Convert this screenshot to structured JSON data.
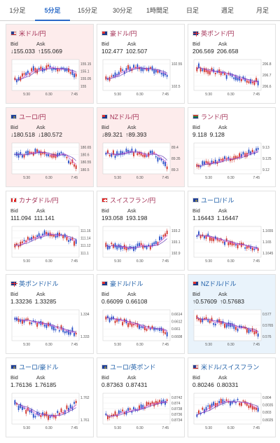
{
  "tabs": [
    {
      "label": "1分足",
      "active": false
    },
    {
      "label": "5分足",
      "active": true
    },
    {
      "label": "15分足",
      "active": false
    },
    {
      "label": "30分足",
      "active": false
    },
    {
      "label": "1時間足",
      "active": false
    },
    {
      "label": "日足",
      "active": false
    },
    {
      "label": "週足",
      "active": false
    },
    {
      "label": "月足",
      "active": false
    }
  ],
  "labels": {
    "bid": "Bid",
    "ask": "Ask"
  },
  "colors": {
    "up": "#d0342c",
    "down": "#2b52c8",
    "ma_pink": "#d84fd0",
    "ma_purple": "#6b3fb8",
    "pair_red": "#a33055",
    "pair_blue": "#1f5fa8"
  },
  "cards": [
    {
      "pair": "米ドル/円",
      "flag_icon": "us-flag-icon",
      "highlight": "red",
      "bid": "↓155.033",
      "ask": "↑155.069",
      "y_ticks": [
        "155.15",
        "155.1",
        "155.05",
        "155"
      ],
      "x_ticks": [
        "5:30",
        "6:30",
        "7:45"
      ],
      "trend": "up-down"
    },
    {
      "pair": "豪ドル/円",
      "flag_icon": "au-flag-icon",
      "highlight": "none",
      "bid": "102.477",
      "ask": "102.507",
      "y_ticks": [
        "102.55",
        "102.5"
      ],
      "x_ticks": [
        "5:30",
        "6:30",
        "7:45"
      ],
      "trend": "up-down"
    },
    {
      "pair": "英ポンド/円",
      "flag_icon": "gb-flag-icon",
      "highlight": "none",
      "bid": "206.569",
      "ask": "206.658",
      "y_ticks": [
        "206.8",
        "206.7",
        "206.6"
      ],
      "x_ticks": [
        "5:30",
        "6:30",
        "7:45"
      ],
      "trend": "down"
    },
    {
      "pair": "ユーロ/円",
      "flag_icon": "eu-flag-icon",
      "highlight": "red",
      "bid": "↓180.518",
      "ask": "↓180.572",
      "y_ticks": [
        "180.65",
        "180.6",
        "180.55",
        "180.5"
      ],
      "x_ticks": [
        "5:30",
        "6:30",
        "7:45"
      ],
      "trend": "flat-down"
    },
    {
      "pair": "NZドル/円",
      "flag_icon": "nz-flag-icon",
      "highlight": "red",
      "bid": "↓89.321",
      "ask": "↑89.393",
      "y_ticks": [
        "89.4",
        "89.35",
        "89.3"
      ],
      "x_ticks": [
        "5:30",
        "6:30",
        "7:45"
      ],
      "trend": "flat-down"
    },
    {
      "pair": "ランド/円",
      "flag_icon": "za-flag-icon",
      "highlight": "none",
      "bid": "9.118",
      "ask": "9.128",
      "y_ticks": [
        "9.13",
        "9.125",
        "9.12"
      ],
      "x_ticks": [
        "5:30",
        "6:30",
        "7:45"
      ],
      "trend": "up"
    },
    {
      "pair": "カナダドル/円",
      "flag_icon": "ca-flag-icon",
      "highlight": "none",
      "bid": "111.094",
      "ask": "111.141",
      "y_ticks": [
        "111.16",
        "111.14",
        "111.12",
        "111.1"
      ],
      "x_ticks": [
        "5:30",
        "6:30",
        "7:45"
      ],
      "trend": "up-down"
    },
    {
      "pair": "スイスフラン/円",
      "flag_icon": "ch-flag-icon",
      "highlight": "none",
      "bid": "193.058",
      "ask": "193.198",
      "y_ticks": [
        "193.2",
        "193.1",
        "192.9"
      ],
      "x_ticks": [
        "5:30",
        "6:30",
        "7:45"
      ],
      "trend": "flat-up"
    },
    {
      "pair": "ユーロ/ドル",
      "flag_icon": "eu-flag-icon",
      "highlight": "none",
      "bid": "1.16443",
      "ask": "1.16447",
      "y_ticks": [
        "1.1655",
        "1.165",
        "1.1645"
      ],
      "x_ticks": [
        "5:30",
        "6:30",
        "7:45"
      ],
      "trend": "down"
    },
    {
      "pair": "英ポンド/ドル",
      "flag_icon": "gb-flag-icon",
      "highlight": "none",
      "bid": "1.33236",
      "ask": "1.33285",
      "y_ticks": [
        "1.334",
        "1.333"
      ],
      "x_ticks": [
        "5:30",
        "6:30",
        "7:45"
      ],
      "trend": "down"
    },
    {
      "pair": "豪ドル/ドル",
      "flag_icon": "au-flag-icon",
      "highlight": "none",
      "bid": "0.66099",
      "ask": "0.66108",
      "y_ticks": [
        "0.6614",
        "0.6612",
        "0.661",
        "0.6608"
      ],
      "x_ticks": [
        "5:30",
        "6:30",
        "7:45"
      ],
      "trend": "down"
    },
    {
      "pair": "NZドル/ドル",
      "flag_icon": "nz-flag-icon",
      "highlight": "blue",
      "bid": "↑0.57609",
      "ask": "↑0.57683",
      "y_ticks": [
        "0.577",
        "0.5765",
        "0.576"
      ],
      "x_ticks": [
        "5:30",
        "6:30",
        "7:45"
      ],
      "trend": "down"
    },
    {
      "pair": "ユーロ/豪ドル",
      "flag_icon": "eu-flag-icon",
      "highlight": "none",
      "bid": "1.76136",
      "ask": "1.76185",
      "y_ticks": [
        "1.762",
        "1.761"
      ],
      "x_ticks": [
        "5:30",
        "6:30",
        "7:45"
      ],
      "trend": "down-up"
    },
    {
      "pair": "ユーロ/英ポンド",
      "flag_icon": "eu-flag-icon",
      "highlight": "none",
      "bid": "0.87363",
      "ask": "0.87431",
      "y_ticks": [
        "0.8742",
        "0.874",
        "0.8738",
        "0.8736",
        "0.8734"
      ],
      "x_ticks": [
        "5:30",
        "6:30",
        "7:45"
      ],
      "trend": "up"
    },
    {
      "pair": "米ドル/スイスフラン",
      "flag_icon": "us-flag-icon",
      "highlight": "none",
      "bid": "0.80246",
      "ask": "0.80331",
      "y_ticks": [
        "0.804",
        "0.8035",
        "0.803",
        "0.8025"
      ],
      "x_ticks": [
        "5:30",
        "6:30",
        "7:45"
      ],
      "trend": "up-down"
    }
  ]
}
